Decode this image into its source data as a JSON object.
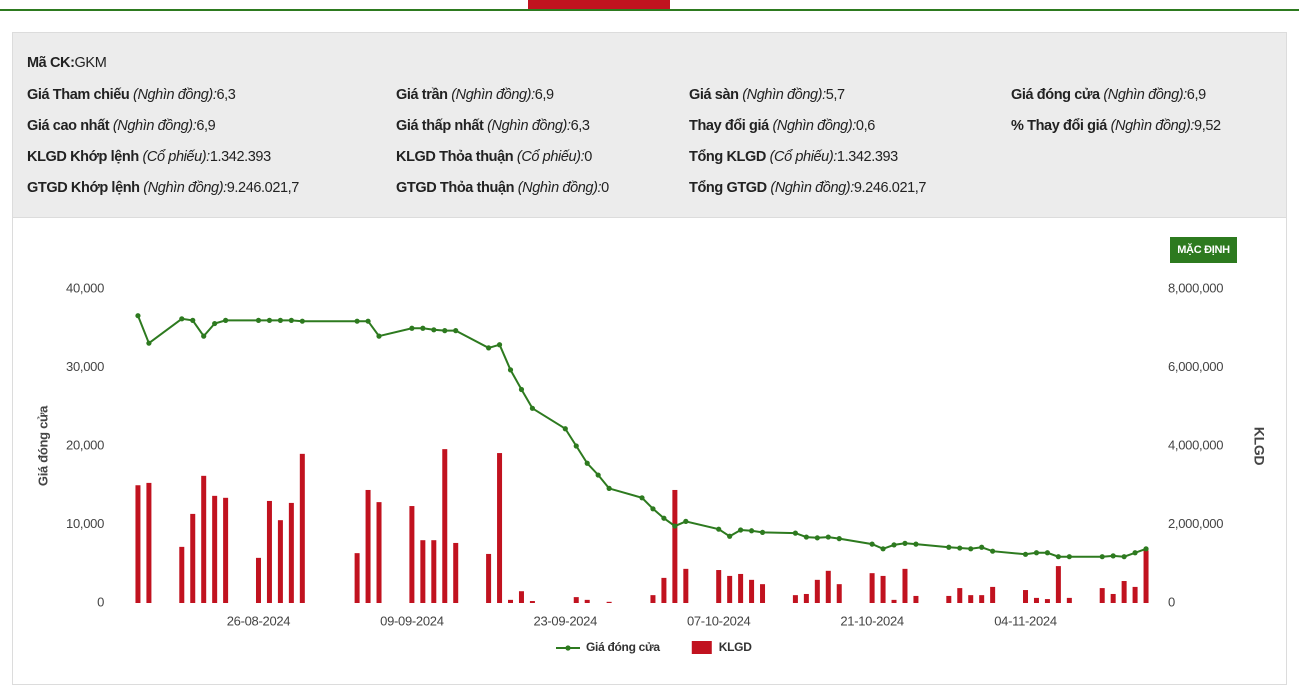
{
  "info": {
    "rows": [
      [
        {
          "label": "Mã CK:",
          "value": "GKM"
        }
      ],
      [
        {
          "label": "Giá Tham chiếu",
          "unit": "(Nghìn đồng):",
          "value": "6,3"
        },
        {
          "label": "Giá trần",
          "unit": "(Nghìn đồng):",
          "value": "6,9"
        },
        {
          "label": "Giá sàn",
          "unit": "(Nghìn đồng):",
          "value": "5,7"
        },
        {
          "label": "Giá đóng cửa",
          "unit": "(Nghìn đồng):",
          "value": "6,9"
        }
      ],
      [
        {
          "label": "Giá cao nhất",
          "unit": "(Nghìn đồng):",
          "value": "6,9"
        },
        {
          "label": "Giá thấp nhất",
          "unit": "(Nghìn đồng):",
          "value": "6,3"
        },
        {
          "label": "Thay đổi giá",
          "unit": "(Nghìn đồng):",
          "value": "0,6"
        },
        {
          "label": "% Thay đổi giá",
          "unit": "(Nghìn đồng):",
          "value": "9,52"
        }
      ],
      [
        {
          "label": "KLGD Khớp lệnh",
          "unit": "(Cổ phiếu):",
          "value": "1.342.393"
        },
        {
          "label": "KLGD Thỏa thuận",
          "unit": "(Cổ phiếu):",
          "value": "0"
        },
        {
          "label": "Tổng KLGD",
          "unit": "(Cổ phiếu):",
          "value": "1.342.393"
        }
      ],
      [
        {
          "label": "GTGD Khớp lệnh",
          "unit": "(Nghìn đồng):",
          "value": "9.246.021,7"
        },
        {
          "label": "GTGD Thỏa thuận",
          "unit": "(Nghìn đồng):",
          "value": "0"
        },
        {
          "label": "Tổng GTGD",
          "unit": "(Nghìn đồng):",
          "value": "9.246.021,7"
        }
      ]
    ]
  },
  "button": "MẶC ĐỊNH",
  "chart_data": {
    "type": "combo",
    "ylabel": "Giá đóng cửa",
    "y2label": "KLGD",
    "x": [
      "15-08-2024",
      "16-08-2024",
      "19-08-2024",
      "20-08-2024",
      "21-08-2024",
      "22-08-2024",
      "23-08-2024",
      "26-08-2024",
      "27-08-2024",
      "28-08-2024",
      "29-08-2024",
      "30-08-2024",
      "04-09-2024",
      "05-09-2024",
      "06-09-2024",
      "09-09-2024",
      "10-09-2024",
      "11-09-2024",
      "12-09-2024",
      "13-09-2024",
      "16-09-2024",
      "17-09-2024",
      "18-09-2024",
      "19-09-2024",
      "20-09-2024",
      "23-09-2024",
      "24-09-2024",
      "25-09-2024",
      "26-09-2024",
      "27-09-2024",
      "30-09-2024",
      "01-10-2024",
      "02-10-2024",
      "03-10-2024",
      "04-10-2024",
      "07-10-2024",
      "08-10-2024",
      "09-10-2024",
      "10-10-2024",
      "11-10-2024",
      "14-10-2024",
      "15-10-2024",
      "16-10-2024",
      "17-10-2024",
      "18-10-2024",
      "21-10-2024",
      "22-10-2024",
      "23-10-2024",
      "24-10-2024",
      "25-10-2024",
      "28-10-2024",
      "29-10-2024",
      "30-10-2024",
      "31-10-2024",
      "01-11-2024",
      "04-11-2024",
      "05-11-2024",
      "06-11-2024",
      "07-11-2024",
      "08-11-2024",
      "11-11-2024",
      "12-11-2024",
      "13-11-2024",
      "14-11-2024",
      "15-11-2024"
    ],
    "series": [
      {
        "name": "Giá đóng cửa",
        "type": "line",
        "color": "#2d7a1f",
        "values": [
          36600,
          33100,
          36200,
          36000,
          34000,
          35600,
          36000,
          36000,
          36000,
          36000,
          36000,
          35900,
          35900,
          35900,
          34000,
          35000,
          35000,
          34800,
          34700,
          34700,
          32500,
          32900,
          29700,
          27200,
          24800,
          22200,
          20000,
          17800,
          16300,
          14600,
          13400,
          12000,
          10800,
          9800,
          10400,
          9400,
          8500,
          9300,
          9200,
          9000,
          8900,
          8400,
          8300,
          8400,
          8200,
          7500,
          6900,
          7400,
          7600,
          7500,
          7100,
          7000,
          6900,
          7100,
          6600,
          6200,
          6400,
          6400,
          5900,
          5900,
          5900,
          6000,
          5900,
          6400,
          6900
        ]
      },
      {
        "name": "KLGD",
        "type": "bar",
        "axis": "y2",
        "color": "#c1121f",
        "values": [
          3000000,
          3060000,
          1430000,
          2270000,
          3240000,
          2730000,
          2680000,
          1150000,
          2600000,
          2110000,
          2550000,
          3800000,
          1270000,
          2880000,
          2570000,
          2470000,
          1600000,
          1600000,
          3920000,
          1530000,
          1250000,
          3820000,
          80000,
          300000,
          50000,
          null,
          150000,
          80000,
          null,
          30000,
          null,
          200000,
          640000,
          2880000,
          870000,
          840000,
          690000,
          740000,
          590000,
          480000,
          200000,
          230000,
          590000,
          820000,
          480000,
          760000,
          690000,
          80000,
          870000,
          180000,
          180000,
          380000,
          200000,
          200000,
          410000,
          330000,
          130000,
          100000,
          940000,
          130000,
          380000,
          230000,
          560000,
          410000,
          1342393
        ]
      }
    ],
    "xlim": [
      "14-08-2024",
      "16-11-2024"
    ],
    "xticks": [
      "26-08-2024",
      "09-09-2024",
      "23-09-2024",
      "07-10-2024",
      "21-10-2024",
      "04-11-2024"
    ],
    "ylim": [
      0,
      40000
    ],
    "yticks": [
      0,
      {
        "value": 10000,
        "label": "10,000"
      },
      {
        "value": 20000,
        "label": "20,000"
      },
      {
        "value": 30000,
        "label": "30,000"
      },
      {
        "value": 40000,
        "label": "40,000"
      }
    ],
    "y2lim": [
      0,
      8000000
    ],
    "y2ticks": [
      0,
      {
        "value": 2000000,
        "label": "2,000,000"
      },
      {
        "value": 4000000,
        "label": "4,000,000"
      },
      {
        "value": 6000000,
        "label": "6,000,000"
      },
      {
        "value": 8000000,
        "label": "8,000,000"
      }
    ],
    "grid": false,
    "legend": "bottom"
  }
}
